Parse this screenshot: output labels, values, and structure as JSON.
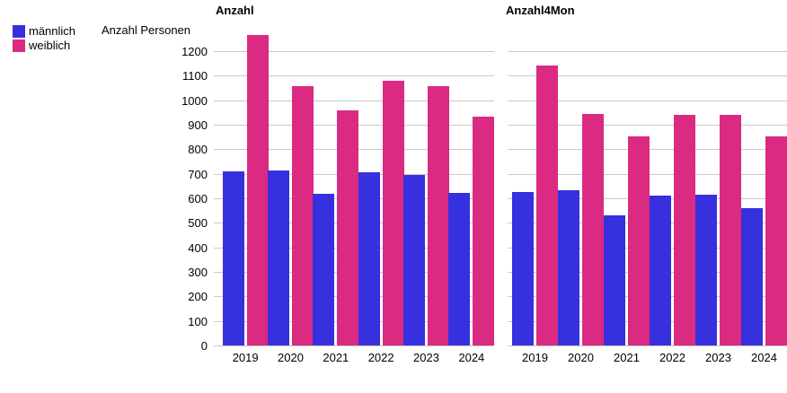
{
  "colors": {
    "maennlich": "#3630DE",
    "weiblich": "#DB2A81",
    "gridline": "#C9C9C9",
    "axis_line": "#C6C6C6",
    "text": "#000000",
    "background": "#FFFFFF"
  },
  "legend": {
    "items": [
      {
        "label": "männlich",
        "color": "#3630DE"
      },
      {
        "label": "weiblich",
        "color": "#DB2A81"
      }
    ]
  },
  "y_axis_title": "Anzahl Personen",
  "chart_data": [
    {
      "type": "bar",
      "title": "Anzahl",
      "categories": [
        "2019",
        "2020",
        "2021",
        "2022",
        "2023",
        "2024"
      ],
      "series": [
        {
          "name": "männlich",
          "color": "#3630DE",
          "values": [
            710,
            712,
            618,
            706,
            696,
            621
          ]
        },
        {
          "name": "weiblich",
          "color": "#DB2A81",
          "values": [
            1265,
            1057,
            958,
            1081,
            1056,
            932
          ]
        }
      ],
      "xlabel": "",
      "ylabel": "Anzahl Personen",
      "ylim": [
        0,
        1200
      ],
      "y_ticks": [
        0,
        100,
        200,
        300,
        400,
        500,
        600,
        700,
        800,
        900,
        1000,
        1100,
        1200
      ],
      "grid": true,
      "show_y_tick_labels": true,
      "legend_position": "top-left",
      "note": "2019 weiblich bar exceeds top gridline (1200)"
    },
    {
      "type": "bar",
      "title": "Anzahl4Mon",
      "categories": [
        "2019",
        "2020",
        "2021",
        "2022",
        "2023",
        "2024"
      ],
      "series": [
        {
          "name": "männlich",
          "color": "#3630DE",
          "values": [
            626,
            634,
            530,
            612,
            614,
            561
          ]
        },
        {
          "name": "weiblich",
          "color": "#DB2A81",
          "values": [
            1143,
            945,
            851,
            942,
            940,
            854
          ]
        }
      ],
      "xlabel": "",
      "ylabel": "",
      "ylim": [
        0,
        1200
      ],
      "y_ticks": [
        0,
        100,
        200,
        300,
        400,
        500,
        600,
        700,
        800,
        900,
        1000,
        1100,
        1200
      ],
      "grid": true,
      "show_y_tick_labels": false,
      "legend_position": "none"
    }
  ]
}
